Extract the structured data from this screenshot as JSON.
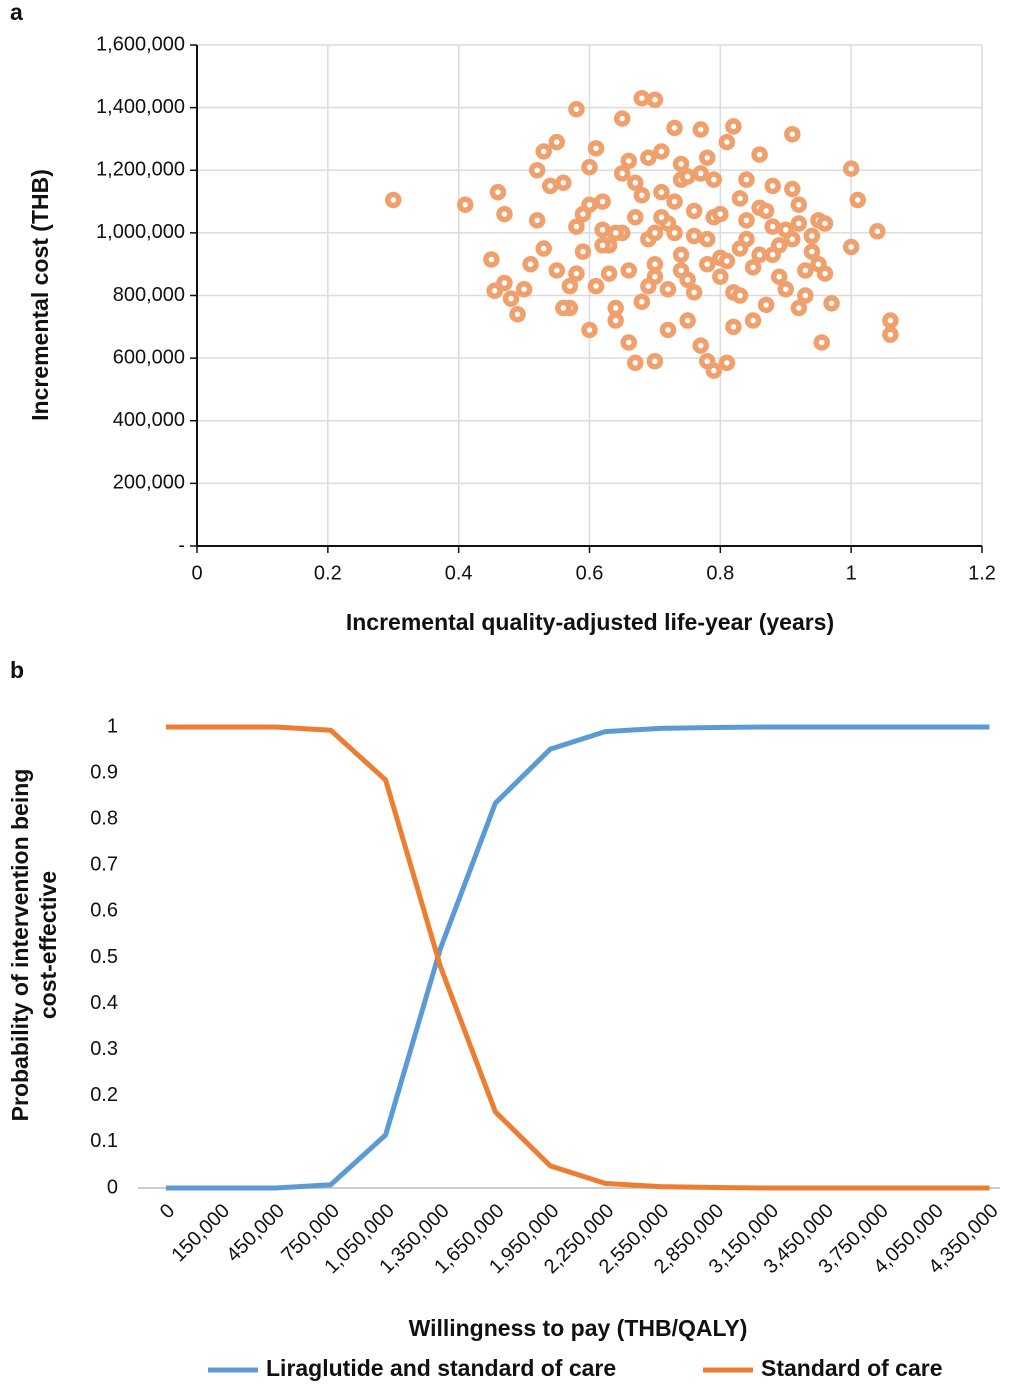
{
  "chart_data": [
    {
      "type": "scatter",
      "panel_label": "a",
      "xlabel": "Incremental quality-adjusted life-year (years)",
      "ylabel": "Incremental cost (THB)",
      "color": "#f0a06c",
      "grid": true,
      "xlim": [
        0,
        1.2
      ],
      "xticks": [
        0,
        0.2,
        0.4,
        0.6,
        0.8,
        1,
        1.2
      ],
      "ylim": [
        0,
        1600000
      ],
      "yticks": [
        {
          "value": 0,
          "label": "-"
        },
        {
          "value": 200000,
          "label": "200,000"
        },
        {
          "value": 400000,
          "label": "400,000"
        },
        {
          "value": 600000,
          "label": "600,000"
        },
        {
          "value": 800000,
          "label": "800,000"
        },
        {
          "value": 1000000,
          "label": "1,000,000"
        },
        {
          "value": 1200000,
          "label": "1,200,000"
        },
        {
          "value": 1400000,
          "label": "1,400,000"
        },
        {
          "value": 1600000,
          "label": "1,600,000"
        }
      ],
      "x": [
        0.3,
        0.41,
        0.45,
        0.455,
        0.46,
        0.47,
        0.47,
        0.48,
        0.49,
        0.58,
        0.65,
        0.68,
        0.7,
        0.73,
        0.77,
        0.82,
        0.91,
        1.0,
        1.01,
        1.0,
        1.04,
        1.06,
        1.06,
        0.955,
        0.79,
        0.67,
        0.7,
        0.81,
        0.78,
        0.97,
        0.52,
        0.53,
        0.55,
        0.56,
        0.57,
        0.58,
        0.59,
        0.6,
        0.61,
        0.62,
        0.63,
        0.64,
        0.65,
        0.66,
        0.67,
        0.68,
        0.69,
        0.7,
        0.71,
        0.72,
        0.73,
        0.74,
        0.75,
        0.76,
        0.77,
        0.78,
        0.79,
        0.8,
        0.81,
        0.82,
        0.83,
        0.84,
        0.85,
        0.86,
        0.87,
        0.88,
        0.89,
        0.9,
        0.91,
        0.92,
        0.93,
        0.94,
        0.95,
        0.96,
        0.51,
        0.54,
        0.56,
        0.59,
        0.61,
        0.63,
        0.65,
        0.66,
        0.68,
        0.69,
        0.71,
        0.72,
        0.74,
        0.75,
        0.77,
        0.79,
        0.8,
        0.82,
        0.84,
        0.86,
        0.88,
        0.9,
        0.92,
        0.94,
        0.96,
        0.5,
        0.53,
        0.55,
        0.57,
        0.6,
        0.62,
        0.64,
        0.67,
        0.7,
        0.72,
        0.74,
        0.76,
        0.78,
        0.8,
        0.83,
        0.85,
        0.87,
        0.89,
        0.91,
        0.93,
        0.95,
        0.52,
        0.58,
        0.62,
        0.66,
        0.69,
        0.73,
        0.76,
        0.81,
        0.84,
        0.88,
        0.92,
        0.6,
        0.64,
        0.71,
        0.75,
        0.78,
        0.83,
        0.86,
        0.7,
        0.74
      ],
      "y": [
        1105000,
        1090000,
        915000,
        815000,
        1130000,
        1060000,
        840000,
        790000,
        740000,
        1395000,
        1365000,
        1430000,
        1425000,
        1335000,
        1330000,
        1340000,
        1315000,
        1205000,
        1105000,
        955000,
        1005000,
        720000,
        675000,
        650000,
        560000,
        585000,
        590000,
        585000,
        590000,
        775000,
        1040000,
        1260000,
        880000,
        1160000,
        760000,
        1020000,
        940000,
        1210000,
        830000,
        1100000,
        960000,
        720000,
        1190000,
        880000,
        1050000,
        780000,
        1240000,
        900000,
        1130000,
        690000,
        1000000,
        1220000,
        850000,
        1070000,
        640000,
        980000,
        1170000,
        920000,
        1290000,
        810000,
        1110000,
        1040000,
        890000,
        1250000,
        770000,
        1150000,
        960000,
        820000,
        1140000,
        1030000,
        880000,
        990000,
        1040000,
        870000,
        900000,
        1150000,
        760000,
        1060000,
        1270000,
        870000,
        1000000,
        650000,
        1120000,
        980000,
        1260000,
        820000,
        930000,
        720000,
        1190000,
        1050000,
        860000,
        700000,
        980000,
        1080000,
        930000,
        1010000,
        760000,
        940000,
        1030000,
        820000,
        950000,
        1290000,
        830000,
        1090000,
        1010000,
        760000,
        1160000,
        860000,
        1030000,
        1170000,
        810000,
        1240000,
        1060000,
        950000,
        720000,
        1070000,
        860000,
        980000,
        800000,
        900000,
        1200000,
        870000,
        960000,
        1230000,
        830000,
        1100000,
        990000,
        910000,
        1170000,
        1020000,
        1090000,
        690000,
        1000000,
        1050000,
        1180000,
        900000,
        800000,
        930000,
        1000000,
        880000
      ]
    },
    {
      "type": "line",
      "panel_label": "b",
      "xlabel": "Willingness to pay (THB/QALY)",
      "ylabel": [
        "Probability of intervention being",
        "cost-effective"
      ],
      "grid": false,
      "categories": [
        "0",
        "150,000",
        "450,000",
        "750,000",
        "1,050,000",
        "1,350,000",
        "1,650,000",
        "1,950,000",
        "2,250,000",
        "2,550,000",
        "2,850,000",
        "3,150,000",
        "3,450,000",
        "3,750,000",
        "4,050,000",
        "4,350,000"
      ],
      "ylim": [
        0,
        1
      ],
      "yticks": [
        0,
        0.1,
        0.2,
        0.3,
        0.4,
        0.5,
        0.6,
        0.7,
        0.8,
        0.9,
        1
      ],
      "series": [
        {
          "name": "Liraglutide and standard of care",
          "color": "#5b9bd5",
          "values": [
            0,
            0,
            0,
            0.007,
            0.115,
            0.52,
            0.835,
            0.952,
            0.99,
            0.997,
            0.999,
            1,
            1,
            1,
            1,
            1
          ]
        },
        {
          "name": "Standard of care",
          "color": "#ed7d31",
          "values": [
            1,
            1,
            1,
            0.993,
            0.885,
            0.48,
            0.165,
            0.048,
            0.01,
            0.003,
            0.001,
            0,
            0,
            0,
            0,
            0
          ]
        }
      ]
    }
  ]
}
